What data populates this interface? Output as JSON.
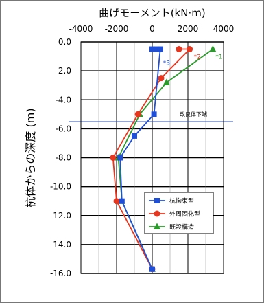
{
  "chart_data": {
    "type": "line",
    "title": "",
    "xlabel": "曲げモーメント(kN·m)",
    "ylabel": "杭体からの深度 (m)",
    "xlim": [
      -4000,
      4000
    ],
    "ylim": [
      0,
      -16
    ],
    "x_ticks": [
      "-4000",
      "-2000",
      "0",
      "2000",
      "4000"
    ],
    "y_ticks": [
      "0.0",
      "-2.0",
      "-4.0",
      "-6.0",
      "-8.0",
      "-10.0",
      "-12.0",
      "-14.0",
      "-16.0"
    ],
    "grid": true,
    "legend_position": "lower-right",
    "series": [
      {
        "name": "杭拘束型",
        "color": "#1f4fd6",
        "marker": "square",
        "end_label": "*3",
        "points": [
          {
            "x": 0,
            "y": -0.5
          },
          {
            "x": 250,
            "y": -0.5
          },
          {
            "x": 450,
            "y": -0.5
          },
          {
            "x": 100,
            "y": -5.0
          },
          {
            "x": -1000,
            "y": -6.5
          },
          {
            "x": -1800,
            "y": -8.0
          },
          {
            "x": -1700,
            "y": -11.0
          },
          {
            "x": 0,
            "y": -15.7
          }
        ]
      },
      {
        "name": "外周固化型",
        "color": "#e8351d",
        "marker": "circle",
        "end_label": "*2",
        "points": [
          {
            "x": 1500,
            "y": -0.5
          },
          {
            "x": 2100,
            "y": -0.5
          },
          {
            "x": 500,
            "y": -2.5
          },
          {
            "x": -800,
            "y": -5.0
          },
          {
            "x": -2200,
            "y": -8.0
          },
          {
            "x": -2000,
            "y": -11.0
          },
          {
            "x": 0,
            "y": -15.7
          }
        ]
      },
      {
        "name": "既設構造",
        "color": "#2a9a2a",
        "marker": "triangle",
        "end_label": "*1",
        "points": [
          {
            "x": 3400,
            "y": -0.5
          },
          {
            "x": 800,
            "y": -2.8
          },
          {
            "x": -700,
            "y": -5.0
          },
          {
            "x": -1900,
            "y": -8.0
          },
          {
            "x": -1700,
            "y": -11.0
          },
          {
            "x": 0,
            "y": -15.7
          }
        ]
      }
    ],
    "annotations": [
      {
        "text": "改良体下端",
        "y": -5.5
      }
    ]
  }
}
